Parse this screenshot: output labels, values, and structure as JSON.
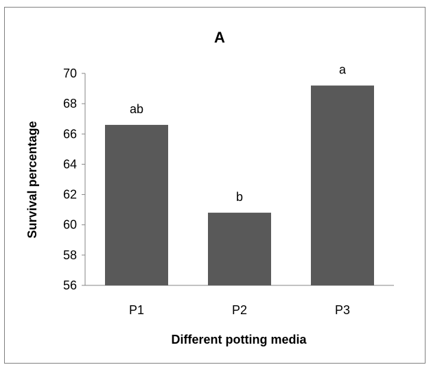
{
  "chart_data": {
    "type": "bar",
    "title": "A",
    "xlabel": "Different potting media",
    "ylabel": "Survival percentage",
    "categories": [
      "P1",
      "P2",
      "P3"
    ],
    "values": [
      66.6,
      60.8,
      69.2
    ],
    "data_labels": [
      "ab",
      "b",
      "a"
    ],
    "ylim": [
      56,
      70
    ],
    "yticks": [
      56,
      58,
      60,
      62,
      64,
      66,
      68,
      70
    ],
    "grid": false,
    "legend": "none",
    "bar_color": "#595959"
  }
}
